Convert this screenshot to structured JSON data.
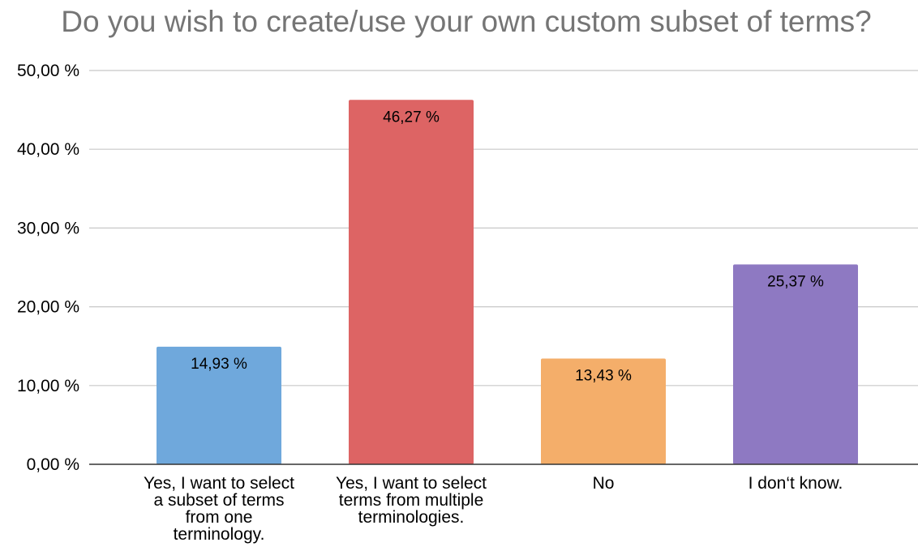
{
  "chart_data": {
    "type": "bar",
    "title": "Do you wish to create/use your own custom subset of terms?",
    "xlabel": "",
    "ylabel": "",
    "categories": [
      [
        "Yes, I want to select",
        "a subset of terms",
        "from one",
        "terminology."
      ],
      [
        "Yes, I want to select",
        "terms from multiple",
        "terminologies."
      ],
      [
        "No"
      ],
      [
        "I don‘t know."
      ]
    ],
    "values": [
      14.93,
      46.27,
      13.43,
      25.37
    ],
    "data_labels": [
      "14,93 %",
      "46,27 %",
      "13,43 %",
      "25,37 %"
    ],
    "colors": [
      "#6fa8dc",
      "#dd6464",
      "#f4ae6a",
      "#8e79c2"
    ],
    "ylim": [
      0,
      50
    ],
    "yticks": [
      {
        "value": 0,
        "label": "0,00 %"
      },
      {
        "value": 10,
        "label": "10,00 %"
      },
      {
        "value": 20,
        "label": "20,00 %"
      },
      {
        "value": 30,
        "label": "30,00 %"
      },
      {
        "value": 40,
        "label": "40,00 %"
      },
      {
        "value": 50,
        "label": "50,00 %"
      }
    ],
    "grid": true,
    "legend": "none"
  }
}
